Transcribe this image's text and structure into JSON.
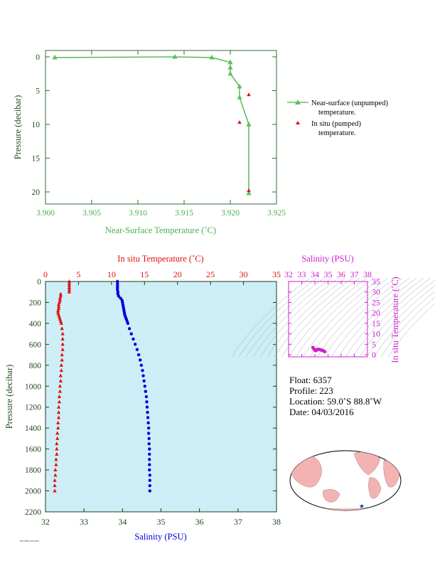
{
  "top_chart": {
    "xlabel": "Near-Surface Temperature (˚C)",
    "ylabel": "Pressure (decibar)",
    "xticks": [
      "3.900",
      "3.905",
      "3.910",
      "3.915",
      "3.920",
      "3.925"
    ],
    "yticks": [
      "0",
      "5",
      "10",
      "15",
      "20"
    ],
    "legend": {
      "near_surface_l1": "Near-surface (unpumped)",
      "near_surface_l2": "temperature.",
      "insitu_l1": "In situ (pumped)",
      "insitu_l2": "temperature."
    }
  },
  "profile_chart": {
    "top_label": "In situ Temperature (˚C)",
    "bottom_label": "Salinity (PSU)",
    "ylabel": "Pressure (decibar)",
    "temp_ticks": [
      "0",
      "5",
      "10",
      "15",
      "20",
      "25",
      "30",
      "35"
    ],
    "sal_ticks": [
      "32",
      "33",
      "34",
      "35",
      "36",
      "37",
      "38"
    ],
    "pressure_ticks": [
      "0",
      "200",
      "400",
      "600",
      "800",
      "1000",
      "1200",
      "1400",
      "1600",
      "1800",
      "2000",
      "2200"
    ]
  },
  "ts_inset": {
    "xlabel": "Salinity (PSU)",
    "ylabel": "In situ Temperature (˚C)",
    "xticks": [
      "32",
      "33",
      "34",
      "35",
      "36",
      "37",
      "38"
    ],
    "yticks": [
      "0",
      "5",
      "10",
      "15",
      "20",
      "25",
      "30",
      "35"
    ]
  },
  "info": {
    "float": "Float:  6357",
    "profile": "Profile:  223",
    "location": "Location:  59.0˚S  88.8˚W",
    "date": "Date:  04/03/2016"
  },
  "footer_code": "P0073060A 20160403",
  "colors": {
    "green": "#5fbf5f",
    "red": "#e01010",
    "blue": "#0000dd",
    "magenta": "#cc22cc",
    "plot_bg": "#cdeef7",
    "axis_green": "#3a6a3a"
  },
  "chart_data": [
    {
      "type": "line",
      "x_axis": "Near-Surface Temperature (˚C)",
      "y_axis": "Pressure (decibar)",
      "xlim": [
        3.9,
        3.925
      ],
      "ylim": [
        22,
        -1
      ],
      "series": [
        {
          "name": "Near-surface (unpumped) temperature.",
          "x": [
            3.901,
            3.914,
            3.918,
            3.92,
            3.92,
            3.92,
            3.921,
            3.921,
            3.922,
            3.922
          ],
          "y": [
            0.1,
            0.0,
            0.1,
            0.8,
            1.6,
            2.5,
            4.4,
            6.0,
            10.0,
            20.2
          ]
        },
        {
          "name": "In situ (pumped) temperature.",
          "x": [
            3.922,
            3.921,
            3.922
          ],
          "y": [
            5.6,
            9.7,
            19.8
          ]
        }
      ]
    },
    {
      "type": "scatter",
      "y_axis": "Pressure (decibar)",
      "ylim": [
        2200,
        0
      ],
      "temperature_axis": {
        "label": "In situ Temperature (˚C)",
        "range": [
          0,
          35
        ]
      },
      "salinity_axis": {
        "label": "Salinity (PSU)",
        "range": [
          32,
          38
        ]
      },
      "series": [
        {
          "name": "In situ Temperature (˚C)",
          "pressure": [
            0,
            20,
            40,
            60,
            80,
            100,
            120,
            140,
            160,
            180,
            200,
            220,
            240,
            260,
            280,
            300,
            320,
            340,
            360,
            380,
            400,
            450,
            500,
            550,
            600,
            650,
            700,
            750,
            800,
            850,
            900,
            950,
            1000,
            1050,
            1100,
            1150,
            1200,
            1250,
            1300,
            1350,
            1400,
            1450,
            1500,
            1550,
            1600,
            1650,
            1700,
            1750,
            1800,
            1850,
            1900,
            1950,
            2000
          ],
          "values": [
            3.6,
            3.6,
            3.6,
            3.6,
            3.6,
            3.6,
            2.3,
            2.3,
            2.2,
            2.2,
            2.1,
            2.0,
            2.0,
            2.0,
            1.9,
            1.9,
            2.0,
            2.1,
            2.2,
            2.3,
            2.4,
            2.5,
            2.6,
            2.6,
            2.6,
            2.6,
            2.5,
            2.5,
            2.4,
            2.4,
            2.3,
            2.3,
            2.2,
            2.2,
            2.1,
            2.1,
            2.0,
            2.0,
            2.0,
            1.9,
            1.9,
            1.8,
            1.8,
            1.7,
            1.7,
            1.7,
            1.6,
            1.6,
            1.5,
            1.5,
            1.4,
            1.4,
            1.4
          ]
        },
        {
          "name": "Salinity (PSU)",
          "pressure": [
            0,
            20,
            40,
            60,
            80,
            100,
            120,
            140,
            160,
            180,
            200,
            220,
            240,
            260,
            280,
            300,
            320,
            340,
            360,
            380,
            400,
            450,
            500,
            550,
            600,
            650,
            700,
            750,
            800,
            850,
            900,
            950,
            1000,
            1050,
            1100,
            1150,
            1200,
            1250,
            1300,
            1350,
            1400,
            1450,
            1500,
            1550,
            1600,
            1650,
            1700,
            1750,
            1800,
            1850,
            1900,
            1950,
            2000
          ],
          "values": [
            33.87,
            33.87,
            33.87,
            33.87,
            33.87,
            33.88,
            33.88,
            33.9,
            33.95,
            33.99,
            34.0,
            34.01,
            34.02,
            34.03,
            34.04,
            34.05,
            34.06,
            34.08,
            34.1,
            34.12,
            34.14,
            34.18,
            34.23,
            34.28,
            34.33,
            34.38,
            34.42,
            34.46,
            34.49,
            34.52,
            34.54,
            34.56,
            34.58,
            34.6,
            34.62,
            34.63,
            34.64,
            34.65,
            34.66,
            34.67,
            34.68,
            34.68,
            34.69,
            34.69,
            34.7,
            34.7,
            34.7,
            34.7,
            34.7,
            34.71,
            34.71,
            34.71,
            34.71
          ]
        }
      ]
    },
    {
      "type": "scatter",
      "x_axis": "Salinity (PSU)",
      "y_axis": "In situ Temperature (˚C)",
      "xlim": [
        32,
        38
      ],
      "ylim": [
        -1,
        35
      ],
      "series": [
        {
          "name": "T-S profile",
          "x": [
            33.85,
            33.9,
            33.95,
            34.0,
            34.05,
            34.1,
            34.15,
            34.2,
            34.3,
            34.4,
            34.5,
            34.6,
            34.7,
            34.75
          ],
          "y": [
            3.5,
            3.0,
            2.5,
            2.2,
            2.0,
            2.1,
            2.3,
            2.5,
            2.6,
            2.4,
            2.2,
            2.0,
            1.7,
            1.5
          ]
        }
      ]
    }
  ]
}
